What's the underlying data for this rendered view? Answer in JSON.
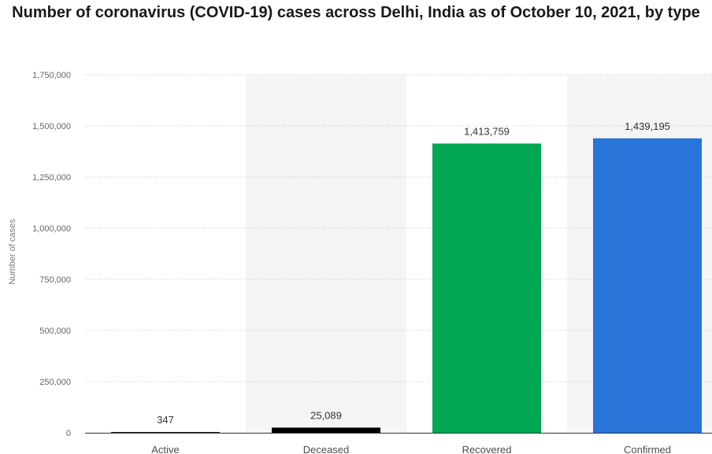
{
  "chart_data": {
    "type": "bar",
    "title": "Number of coronavirus (COVID-19) cases across Delhi, India as of October 10, 2021, by type",
    "xlabel": "",
    "ylabel": "Number of cases",
    "ylim": [
      0,
      1750000
    ],
    "yticks": [
      0,
      250000,
      500000,
      750000,
      1000000,
      1250000,
      1500000,
      1750000
    ],
    "ytick_labels": [
      "0",
      "250,000",
      "500,000",
      "750,000",
      "1,000,000",
      "1,250,000",
      "1,500,000",
      "1,750,000"
    ],
    "categories": [
      "Active",
      "Deceased",
      "Recovered",
      "Confirmed"
    ],
    "values": [
      347,
      25089,
      1413759,
      1439195
    ],
    "value_labels": [
      "347",
      "25,089",
      "1,413,759",
      "1,439,195"
    ],
    "colors": [
      "#1f1f1f",
      "#000000",
      "#00a651",
      "#2874d9"
    ],
    "grid": true,
    "alternating_column_bands": true,
    "band_color": "#f5f5f5"
  }
}
